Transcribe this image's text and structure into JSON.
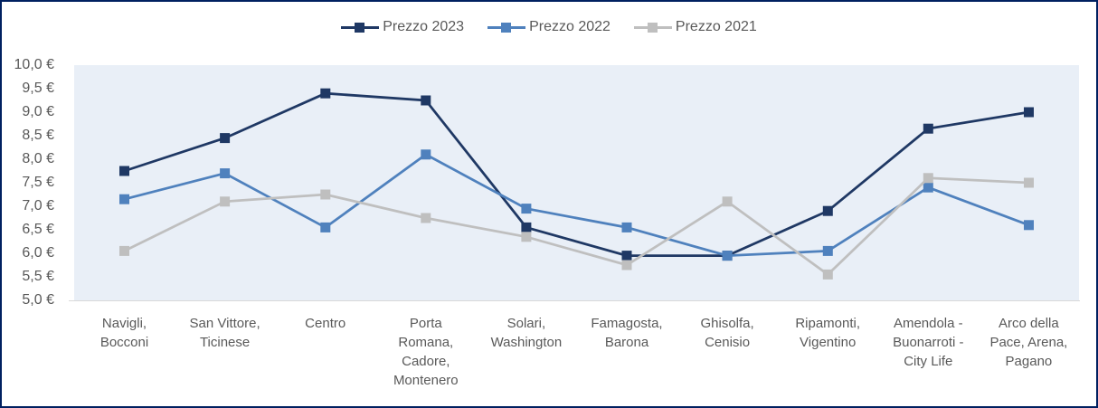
{
  "chart_data": {
    "type": "line",
    "title": "",
    "xlabel": "",
    "ylabel": "",
    "grid": false,
    "legend_position": "top",
    "marker_shape": "square",
    "ylim": [
      5.0,
      10.0
    ],
    "ytick_step": 0.5,
    "ytick_labels": [
      "10,0 €",
      "9,5 €",
      "9,0 €",
      "8,5 €",
      "8,0 €",
      "7,5 €",
      "7,0 €",
      "6,5 €",
      "6,0 €",
      "5,5 €",
      "5,0 €"
    ],
    "categories": [
      "Navigli, Bocconi",
      "San Vittore, Ticinese",
      "Centro",
      "Porta Romana, Cadore, Montenero",
      "Solari, Washington",
      "Famagosta, Barona",
      "Ghisolfa, Cenisio",
      "Ripamonti, Vigentino",
      "Amendola - Buonarroti - City Life",
      "Arco della Pace, Arena, Pagano"
    ],
    "category_label_lines": [
      [
        "Navigli,",
        "Bocconi"
      ],
      [
        "San Vittore,",
        "Ticinese"
      ],
      [
        "Centro"
      ],
      [
        "Porta",
        "Romana,",
        "Cadore,",
        "Montenero"
      ],
      [
        "Solari,",
        "Washington"
      ],
      [
        "Famagosta,",
        "Barona"
      ],
      [
        "Ghisolfa,",
        "Cenisio"
      ],
      [
        "Ripamonti,",
        "Vigentino"
      ],
      [
        "Amendola -",
        "Buonarroti -",
        "City Life"
      ],
      [
        "Arco della",
        "Pace, Arena,",
        "Pagano"
      ]
    ],
    "series": [
      {
        "name": "Prezzo 2023",
        "color": "#1F3864",
        "values": [
          7.75,
          8.45,
          9.4,
          9.25,
          6.55,
          5.95,
          5.95,
          6.9,
          8.65,
          9.0
        ]
      },
      {
        "name": "Prezzo 2022",
        "color": "#4F81BD",
        "values": [
          7.15,
          7.7,
          6.55,
          8.1,
          6.95,
          6.55,
          5.95,
          6.05,
          7.4,
          6.6
        ]
      },
      {
        "name": "Prezzo 2021",
        "color": "#BFBFBF",
        "values": [
          6.05,
          7.1,
          7.25,
          6.75,
          6.35,
          5.75,
          7.1,
          5.55,
          7.6,
          7.5
        ]
      }
    ]
  },
  "style": {
    "background": "#FFFFFF",
    "plot_background": "#E9EFF7",
    "axis_line_color": "#D9D9D9",
    "text_color": "#595959",
    "frame_border_color": "#002060"
  }
}
